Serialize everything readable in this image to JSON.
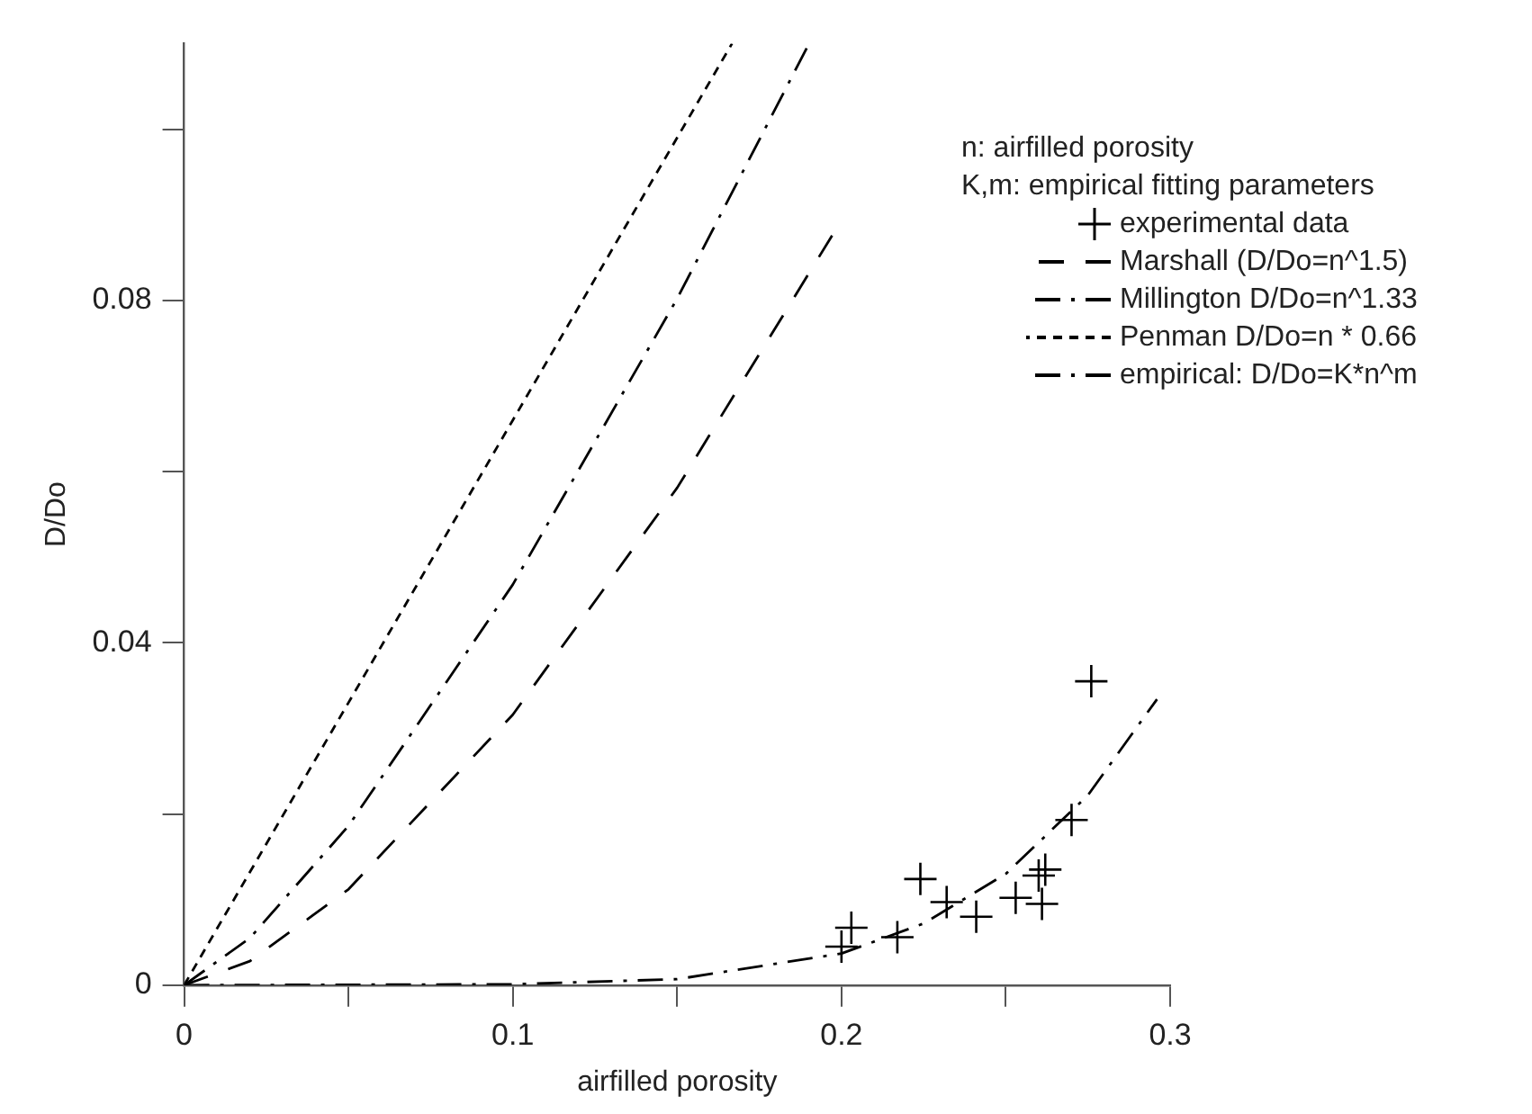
{
  "chart_data": {
    "type": "line",
    "xlabel": "airfilled porosity",
    "ylabel": "D/Do",
    "legend_title": "n: airfilled porosity\nK,m: empirical fitting parameters",
    "legend": "top right",
    "grid": false,
    "xlim": [
      0,
      0.3
    ],
    "xticks": [
      0,
      {
        "value": 0.05,
        "label": null
      },
      0.1,
      {
        "value": 0.15,
        "label": null
      },
      0.2,
      {
        "value": 0.25,
        "label": null
      },
      0.3
    ],
    "ylim": [
      0,
      0.11
    ],
    "yticks": [
      0,
      {
        "value": 0.02,
        "label": null
      },
      0.04,
      {
        "value": 0.06,
        "label": null
      },
      0.08,
      {
        "value": 0.1,
        "label": null
      }
    ],
    "series": [
      {
        "name": "experimental data",
        "type": "scatter",
        "marker": "cross",
        "color": "#000000",
        "x": [
          0.2,
          0.203,
          0.217,
          0.224,
          0.232,
          0.241,
          0.253,
          0.26,
          0.262,
          0.261,
          0.27,
          0.276
        ],
        "values": [
          0.0045,
          0.0067,
          0.0056,
          0.0124,
          0.0097,
          0.008,
          0.0102,
          0.0128,
          0.0135,
          0.0095,
          0.0193,
          0.0355
        ]
      },
      {
        "name": "Marshall (D/Do=n^1.5)",
        "type": "line",
        "line_style": "dashed",
        "color": "#000000",
        "x": [
          0,
          0.02,
          0.05,
          0.1,
          0.15,
          0.198
        ],
        "values": [
          0,
          0.0028,
          0.0112,
          0.0316,
          0.0581,
          0.0881
        ]
      },
      {
        "name": "Millington D/Do=n^1.33",
        "type": "line",
        "line_style": "dashdot",
        "color": "#000000",
        "x": [
          0,
          0.02,
          0.05,
          0.1,
          0.15,
          0.19
        ],
        "values": [
          0,
          0.0055,
          0.0186,
          0.0468,
          0.0802,
          0.1099
        ]
      },
      {
        "name": "Penman D/Do=n * 0.66",
        "type": "line",
        "line_style": "dotted",
        "color": "#000000",
        "x": [
          0,
          0.05,
          0.1,
          0.15,
          0.1667
        ],
        "values": [
          0,
          0.033,
          0.066,
          0.099,
          0.11
        ]
      },
      {
        "name": "empirical: D/Do=K*n^m",
        "type": "line",
        "line_style": "dashdot",
        "color": "#000000",
        "x": [
          0,
          0.1,
          0.15,
          0.2,
          0.225,
          0.25,
          0.275,
          0.296
        ],
        "values": [
          0,
          0.0001,
          0.0007,
          0.0037,
          0.0072,
          0.013,
          0.0222,
          0.0334
        ]
      }
    ]
  }
}
